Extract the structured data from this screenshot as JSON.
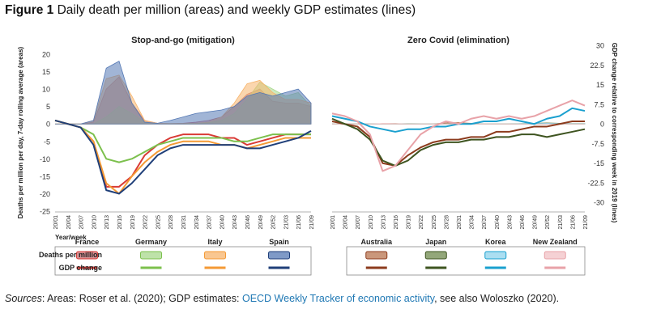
{
  "figure": {
    "label": "Figure 1",
    "title": "Daily death per million (areas) and weekly GDP estimates (lines)"
  },
  "axes": {
    "left_y_title": "Deaths per million per day, 7-day rolling average (areas)",
    "right_y_title": "GDP change relative to corresponding week in 2019 (lines)",
    "x_title": "Year/week"
  },
  "legend": {
    "deaths_label": "Deaths per million",
    "gdp_label": "GDP change"
  },
  "colors": {
    "France_gdp": "#d93a35",
    "France_area": "#c96a6e",
    "Germany_gdp": "#7cc04d",
    "Germany_area": "#a8d88c",
    "Italy_gdp": "#f49a35",
    "Italy_area": "#f7b46c",
    "Spain_gdp": "#1f3f79",
    "Spain_area": "#5478b4",
    "Australia_gdp": "#8c3b1d",
    "Australia_area": "#b8744f",
    "Japan_gdp": "#3e5420",
    "Japan_area": "#6f8a4e",
    "Korea_gdp": "#1aa0cf",
    "Korea_area": "#8fd3ec",
    "NewZealand_gdp": "#e8a2a8",
    "NewZealand_area": "#f1c2c6"
  },
  "chart_data": [
    {
      "type": "area+line",
      "title": "Stop-and-go (mitigation)",
      "x": [
        "20/01",
        "20/04",
        "20/07",
        "20/10",
        "20/13",
        "20/16",
        "20/19",
        "20/22",
        "20/25",
        "20/28",
        "20/31",
        "20/34",
        "20/37",
        "20/40",
        "20/43",
        "20/46",
        "20/49",
        "20/52",
        "21/03",
        "21/06",
        "21/09"
      ],
      "ylim_left": [
        -25,
        20
      ],
      "yticks_left": [
        20,
        15,
        10,
        5,
        0,
        -5,
        -10,
        -15,
        -20,
        -25
      ],
      "series": [
        {
          "name": "France",
          "deaths": [
            0,
            0,
            0,
            0.5,
            10,
            13.5,
            6,
            1,
            0.2,
            0.1,
            0.2,
            0.5,
            1,
            2,
            5,
            8.5,
            10,
            6.5,
            6,
            6,
            5
          ],
          "gdp": [
            1,
            0,
            -1,
            -5,
            -18,
            -18,
            -15,
            -9,
            -6,
            -4,
            -3,
            -3,
            -3,
            -4,
            -4,
            -6,
            -5,
            -4,
            -3,
            -3,
            -3
          ]
        },
        {
          "name": "Germany",
          "deaths": [
            0,
            0,
            0,
            0,
            2,
            5,
            3,
            0.5,
            0.1,
            0.1,
            0.1,
            0.2,
            0.3,
            1,
            3,
            7,
            12,
            10,
            8,
            9,
            5
          ],
          "gdp": [
            1,
            0,
            -1,
            -3,
            -10,
            -11,
            -10,
            -8,
            -6,
            -5,
            -4,
            -4,
            -4,
            -4,
            -5,
            -5,
            -4,
            -3,
            -3,
            -3,
            -3
          ]
        },
        {
          "name": "Italy",
          "deaths": [
            0,
            0,
            0,
            1,
            13,
            14,
            8,
            1,
            0.2,
            0.1,
            0.1,
            0.2,
            0.5,
            2,
            6,
            11.5,
            12.5,
            9,
            7,
            7,
            6
          ],
          "gdp": [
            1,
            0,
            -1,
            -5,
            -17,
            -20,
            -15,
            -11,
            -8,
            -6,
            -5,
            -5,
            -5,
            -6,
            -6,
            -7,
            -6,
            -5,
            -4,
            -4,
            -4
          ]
        },
        {
          "name": "Spain",
          "deaths": [
            0,
            0,
            0,
            1,
            16,
            18,
            6,
            0.5,
            0.2,
            1,
            2,
            3,
            3.5,
            4,
            5,
            8,
            9,
            8,
            9,
            10,
            6
          ],
          "gdp": [
            1,
            0,
            -1,
            -6,
            -19,
            -20,
            -17,
            -13,
            -9,
            -7,
            -6,
            -6,
            -6,
            -6,
            -6,
            -7,
            -7,
            -6,
            -5,
            -4,
            -2
          ]
        }
      ]
    },
    {
      "type": "area+line",
      "title": "Zero Covid (elimination)",
      "x": [
        "20/01",
        "20/04",
        "20/07",
        "20/10",
        "20/13",
        "20/16",
        "20/19",
        "20/22",
        "20/25",
        "20/28",
        "20/31",
        "20/34",
        "20/37",
        "20/40",
        "20/43",
        "20/46",
        "20/49",
        "20/52",
        "21/03",
        "21/06",
        "21/09"
      ],
      "ylim_right": [
        -30,
        30
      ],
      "yticks_right": [
        30,
        22.5,
        15,
        7.5,
        0,
        -7.5,
        -15,
        -22.5,
        -30
      ],
      "series": [
        {
          "name": "Australia",
          "deaths": [
            0,
            0,
            0,
            0,
            0.1,
            0.1,
            0,
            0,
            0,
            0.3,
            0.4,
            0.2,
            0,
            0,
            0,
            0,
            0,
            0,
            0,
            0,
            0
          ],
          "gdp": [
            1,
            0,
            -1,
            -5,
            -15,
            -16,
            -12,
            -9,
            -7,
            -6,
            -6,
            -5,
            -5,
            -3,
            -3,
            -2,
            -1,
            -1,
            0,
            1,
            1
          ]
        },
        {
          "name": "Japan",
          "deaths": [
            0,
            0,
            0,
            0,
            0.05,
            0.1,
            0.05,
            0,
            0,
            0,
            0.05,
            0.05,
            0,
            0,
            0,
            0.1,
            0.2,
            0.3,
            0.2,
            0.1,
            0.1
          ],
          "gdp": [
            2,
            0,
            -2,
            -6,
            -14,
            -16,
            -14,
            -10,
            -8,
            -7,
            -7,
            -6,
            -6,
            -5,
            -5,
            -4,
            -4,
            -5,
            -4,
            -3,
            -2
          ]
        },
        {
          "name": "Korea",
          "deaths": [
            0,
            0,
            0,
            0,
            0.05,
            0.05,
            0,
            0,
            0,
            0,
            0.05,
            0.05,
            0,
            0,
            0,
            0.05,
            0.1,
            0.2,
            0.1,
            0.05,
            0.05
          ],
          "gdp": [
            3,
            2,
            1,
            -1,
            -2,
            -3,
            -2,
            -2,
            -1,
            -1,
            0,
            0,
            1,
            1,
            2,
            1,
            0,
            2,
            3,
            6,
            5
          ]
        },
        {
          "name": "New Zealand",
          "deaths": [
            0,
            0,
            0,
            0,
            0.1,
            0.1,
            0,
            0,
            0,
            0,
            0,
            0,
            0,
            0,
            0,
            0,
            0,
            0,
            0,
            0,
            0
          ],
          "gdp": [
            4,
            3,
            1,
            -4,
            -18,
            -16,
            -10,
            -4,
            -1,
            1,
            0,
            2,
            3,
            2,
            3,
            2,
            3,
            5,
            7,
            9,
            7
          ]
        }
      ]
    }
  ],
  "sources": {
    "label": "Sources",
    "text1": ": Areas: Roser et al. (2020); GDP estimates: ",
    "link": "OECD Weekly Tracker of economic activity",
    "text2": ", see also Woloszko (2020)."
  }
}
